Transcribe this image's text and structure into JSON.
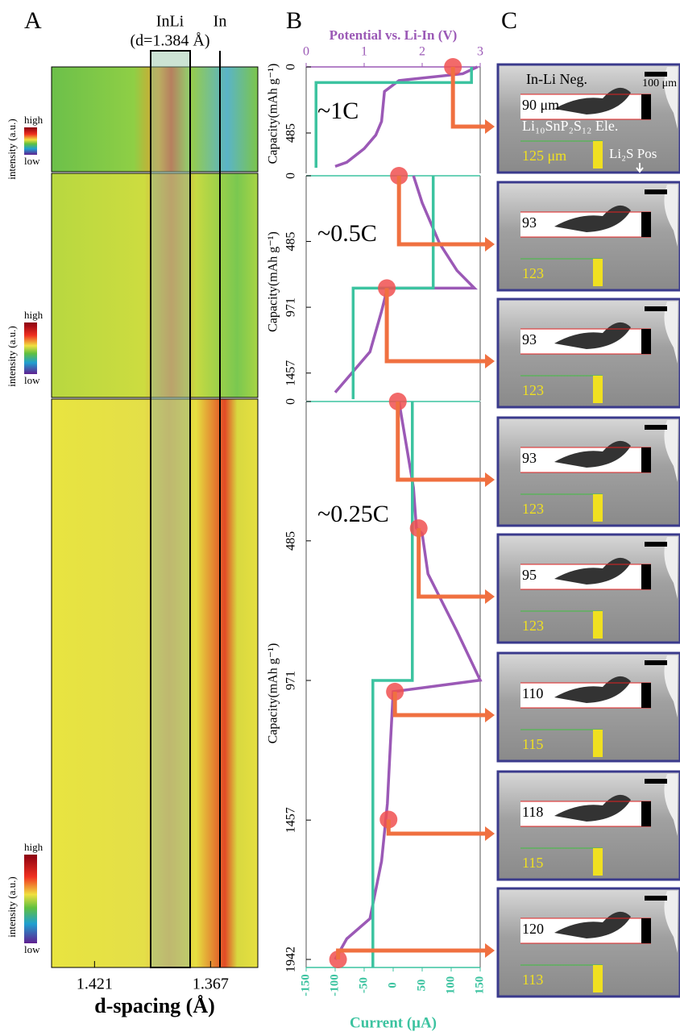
{
  "panel_a": {
    "label": "A",
    "markers": [
      {
        "name": "InLi",
        "detail": "(d=1.384 Å)"
      },
      {
        "name": "In"
      }
    ],
    "xlim": [
      1.441,
      1.345
    ],
    "xticks": [
      1.421,
      1.367
    ],
    "xlabel": "d-spacing (Å)",
    "colorbar": {
      "title": "intensity (a.u.)",
      "high": "high",
      "low": "low"
    }
  },
  "panel_b_label": "B",
  "chart_data": [
    {
      "type": "line",
      "annotation": "~1C",
      "ylabel": "Capacity(mAh g⁻¹)",
      "ylim": [
        0,
        781
      ],
      "yticks": [
        0,
        485
      ],
      "xlabel": "Potential vs. Li-In (V)",
      "xlim": [
        0,
        3
      ],
      "xticks": [
        0,
        1,
        2,
        3
      ],
      "x2lim": [
        -150,
        150
      ],
      "series": [
        {
          "color": "#9b59b6",
          "capacity": [
            0,
            50,
            100,
            180,
            400,
            500,
            600,
            700,
            730
          ],
          "values": [
            2.95,
            2.7,
            1.6,
            1.35,
            1.3,
            1.2,
            1.0,
            0.7,
            0.5
          ]
        },
        {
          "color": "#3cc3a0",
          "axis": "x2",
          "capacity": [
            0,
            115,
            115,
            740
          ],
          "values": [
            135,
            135,
            -133,
            -133
          ]
        }
      ],
      "points": {
        "color": "#f05050",
        "capacity": [
          0
        ],
        "values": [
          2.53
        ]
      }
    },
    {
      "type": "line",
      "annotation": "~0.5C",
      "ylabel": "Capacity(mAh g⁻¹)",
      "ylim": [
        0,
        1661
      ],
      "yticks": [
        0,
        485,
        971,
        1457
      ],
      "xlim": [
        0,
        3
      ],
      "x2lim": [
        -150,
        150
      ],
      "series": [
        {
          "color": "#9b59b6",
          "capacity": [
            0,
            200,
            500,
            700,
            830,
            830,
            1000,
            1300,
            1500,
            1600
          ],
          "values": [
            1.85,
            2.0,
            2.3,
            2.6,
            2.9,
            1.4,
            1.3,
            1.1,
            0.7,
            0.5
          ]
        },
        {
          "color": "#3cc3a0",
          "axis": "x2",
          "capacity": [
            0,
            830,
            830,
            1650
          ],
          "values": [
            69,
            69,
            -69,
            -69
          ]
        }
      ],
      "points": {
        "color": "#f05050",
        "capacity": [
          0,
          830
        ],
        "values": [
          1.6,
          1.39
        ]
      }
    },
    {
      "type": "line",
      "annotation": "~0.25C",
      "ylabel": "Capacity(mAh g⁻¹)",
      "ylim": [
        0,
        1970
      ],
      "yticks": [
        0,
        485,
        971,
        1457,
        1942
      ],
      "xlim": [
        0,
        3
      ],
      "x2lim": [
        -150,
        150
      ],
      "x2label": "Current (μA)",
      "x2ticks": [
        -150,
        -100,
        -50,
        0,
        50,
        100,
        150
      ],
      "series": [
        {
          "color": "#9b59b6",
          "capacity": [
            0,
            300,
            440,
            460,
            600,
            800,
            970,
            1010,
            1200,
            1400,
            1600,
            1800,
            1870,
            1942
          ],
          "values": [
            1.6,
            1.85,
            1.9,
            2.0,
            2.1,
            2.6,
            3.0,
            1.5,
            1.45,
            1.4,
            1.3,
            1.1,
            0.7,
            0.5
          ]
        },
        {
          "color": "#3cc3a0",
          "axis": "x2",
          "capacity": [
            0,
            971,
            971,
            1970
          ],
          "values": [
            33,
            33,
            -35,
            -35
          ]
        }
      ],
      "points": {
        "color": "#f05050",
        "capacity": [
          0,
          441,
          1010,
          1455,
          1942
        ],
        "values": [
          1.58,
          1.94,
          1.53,
          1.42,
          0.55
        ]
      }
    }
  ],
  "panel_c": {
    "label": "C",
    "neg": "In-Li Neg.",
    "scale": "100 μm",
    "ele": "Li₁₀SnP₂S₁₂ Ele.",
    "pos": "Li₂S Pos",
    "frames": [
      {
        "neg": "90 μm",
        "pos": "125 μm"
      },
      {
        "neg": "93",
        "pos": "123"
      },
      {
        "neg": "93",
        "pos": "123"
      },
      {
        "neg": "93",
        "pos": "123"
      },
      {
        "neg": "95",
        "pos": "123"
      },
      {
        "neg": "110",
        "pos": "115"
      },
      {
        "neg": "118",
        "pos": "115"
      },
      {
        "neg": "120",
        "pos": "113"
      }
    ]
  }
}
